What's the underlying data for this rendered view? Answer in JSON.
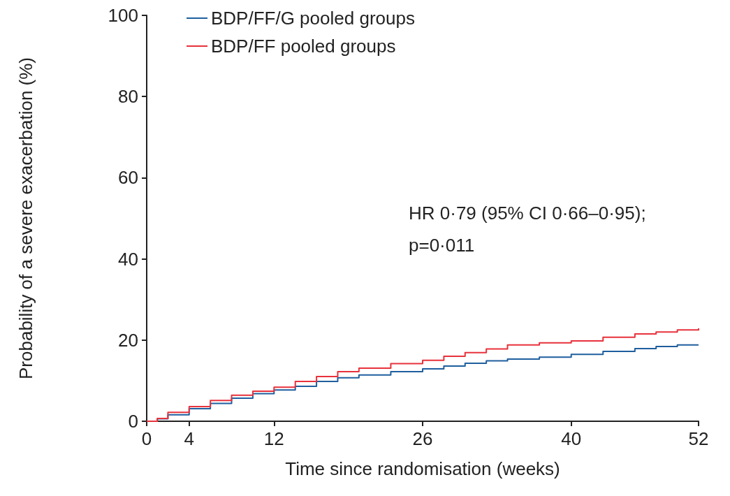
{
  "chart_data": {
    "type": "step",
    "xlabel": "Time since randomisation (weeks)",
    "ylabel": "Probability of a severe exacerbation (%)",
    "annotations": [
      "HR 0·79 (95% CI 0·66–0·95);",
      "p=0·011"
    ],
    "xlim": [
      0,
      52
    ],
    "xticks": [
      0,
      4,
      12,
      26,
      40,
      52
    ],
    "ylim": [
      0,
      100
    ],
    "yticks": [
      0,
      20,
      40,
      60,
      80,
      100
    ],
    "grid": false,
    "legend": "top left",
    "marker": "none",
    "line_style": "solid",
    "series": [
      {
        "name": "BDP/FF/G pooled groups",
        "color": "#1f5f9e",
        "x": [
          0,
          1,
          2,
          4,
          6,
          8,
          10,
          12,
          14,
          16,
          18,
          20,
          23,
          26,
          28,
          30,
          32,
          34,
          37,
          40,
          43,
          46,
          48,
          50,
          52
        ],
        "values": [
          0,
          0.6,
          1.6,
          3.1,
          4.4,
          5.7,
          6.8,
          7.7,
          8.6,
          9.8,
          10.7,
          11.4,
          12.2,
          12.9,
          13.6,
          14.3,
          14.9,
          15.3,
          15.8,
          16.5,
          17.2,
          17.9,
          18.4,
          18.8,
          18.8
        ]
      },
      {
        "name": "BDP/FF pooled groups",
        "color": "#e8323c",
        "x": [
          0,
          1,
          2,
          4,
          6,
          8,
          10,
          12,
          14,
          16,
          18,
          20,
          23,
          26,
          28,
          30,
          32,
          34,
          37,
          40,
          43,
          46,
          48,
          50,
          52
        ],
        "values": [
          0,
          0.7,
          2.2,
          3.6,
          5.1,
          6.4,
          7.4,
          8.4,
          9.8,
          11.0,
          12.2,
          13.1,
          14.2,
          15.0,
          16.0,
          16.9,
          17.8,
          18.8,
          19.3,
          19.8,
          20.7,
          21.5,
          22.0,
          22.5,
          22.9
        ]
      }
    ]
  }
}
